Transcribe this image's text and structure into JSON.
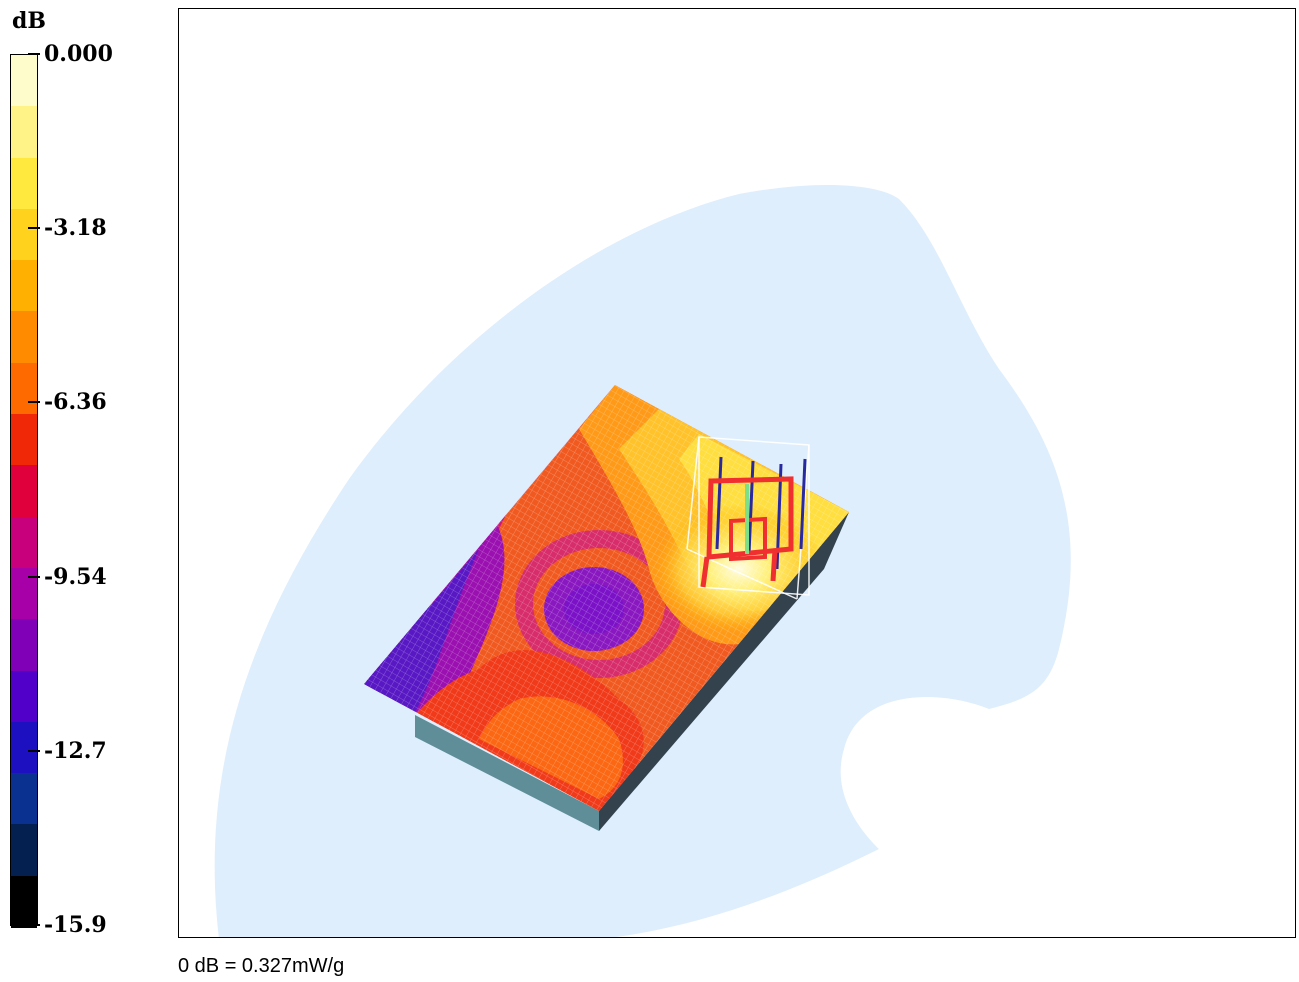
{
  "legend": {
    "unit": "dB",
    "ticks": [
      "0.000",
      "-3.18",
      "-6.36",
      "-9.54",
      "-12.7",
      "-15.9"
    ],
    "colors": [
      "#fffccc",
      "#fff388",
      "#ffe93e",
      "#ffd21e",
      "#ffb000",
      "#ff8c00",
      "#ff6a00",
      "#f02808",
      "#e0003c",
      "#c8007c",
      "#a800a8",
      "#8000b8",
      "#5000c8",
      "#1c10c0",
      "#0a3090",
      "#042050",
      "#000000"
    ]
  },
  "phantom_color": "#deeefd",
  "footer": {
    "reference": "0 dB = 0.327mW/g"
  }
}
